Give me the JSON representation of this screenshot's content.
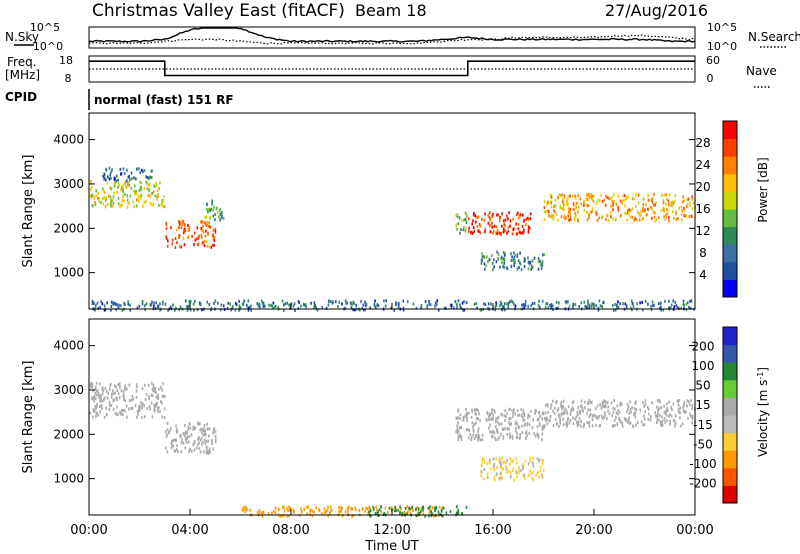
{
  "header": {
    "title": "Christmas Valley East (fitACF)",
    "beam": "Beam 18",
    "date": "27/Aug/2016"
  },
  "side_labels": {
    "nsky": "N.Sky",
    "freq": "Freq.",
    "freq_unit": "[MHz]",
    "cpid": "CPID",
    "nsearch": "N.Search",
    "nave": "Nave"
  },
  "cpid_text": "normal (fast) 151 RF",
  "colors": {
    "axis": "#000000",
    "power_scale": [
      "#0000ff",
      "#2050a0",
      "#3b6ea5",
      "#2e8b57",
      "#66bb44",
      "#c8d800",
      "#ffbf00",
      "#ff8000",
      "#ff4000",
      "#ff0000"
    ],
    "velocity_scale": [
      "#2222cc",
      "#3355aa",
      "#228833",
      "#66cc33",
      "#aaaaaa",
      "#bbbbbb",
      "#ffcc33",
      "#ff9900",
      "#ff5500",
      "#dd0000"
    ]
  },
  "chart_data": [
    {
      "type": "line",
      "panel": "noise",
      "left_ticks": [
        "10^5",
        "10^0"
      ],
      "right_ticks": [
        "10^5",
        "10^0"
      ],
      "series": [
        {
          "name": "N.Sky",
          "values": [
            0.3,
            0.3,
            0.3,
            0.4,
            0.9,
            1.1,
            1.0,
            0.5,
            0.3,
            0.3,
            0.3,
            0.3,
            0.3,
            0.3,
            0.4,
            0.5,
            0.4,
            0.4,
            0.4,
            0.4,
            0.4,
            0.4,
            0.4,
            0.3,
            0.3
          ]
        },
        {
          "name": "N.Search",
          "values": [
            0.2,
            0.2,
            0.2,
            0.3,
            0.4,
            0.4,
            0.3,
            0.2,
            0.2,
            0.2,
            0.2,
            0.2,
            0.2,
            0.2,
            0.3,
            0.4,
            0.4,
            0.5,
            0.5,
            0.5,
            0.5,
            0.6,
            0.6,
            0.5,
            0.4
          ]
        }
      ]
    },
    {
      "type": "line",
      "panel": "frequency",
      "left_ticks": [
        "18",
        "8"
      ],
      "right_ticks": [
        "60",
        "0"
      ],
      "series": [
        {
          "name": "Freq.",
          "x": [
            0,
            3.0,
            3.0,
            15.0,
            15.0,
            24
          ],
          "values": [
            16,
            16,
            10.5,
            10.5,
            16,
            16
          ]
        },
        {
          "name": "Nave",
          "x": [
            0,
            24
          ],
          "values": [
            30,
            30
          ]
        }
      ]
    },
    {
      "type": "heatmap",
      "panel": "power",
      "ylabel": "Slant Range [km]",
      "colorbar_label": "Power [dB]",
      "colorbar_ticks": [
        "4",
        "8",
        "12",
        "16",
        "20",
        "24",
        "28"
      ],
      "y_ticks": [
        "1000",
        "2000",
        "3000",
        "4000"
      ],
      "ylim": [
        180,
        4600
      ],
      "xlim": [
        0,
        24
      ],
      "x_ticks": [
        "00:00",
        "04:00",
        "08:00",
        "12:00",
        "16:00",
        "20:00",
        "00:00"
      ],
      "regions": [
        {
          "x": [
            0,
            3.0
          ],
          "y": [
            2500,
            3100
          ],
          "value": 18
        },
        {
          "x": [
            0.5,
            2.5
          ],
          "y": [
            3100,
            3400
          ],
          "value": 8
        },
        {
          "x": [
            3.0,
            5.0
          ],
          "y": [
            1600,
            2200
          ],
          "value": 26
        },
        {
          "x": [
            4.5,
            5.3
          ],
          "y": [
            2200,
            2700
          ],
          "value": 14
        },
        {
          "x": [
            14.5,
            15.0
          ],
          "y": [
            1900,
            2400
          ],
          "value": 14
        },
        {
          "x": [
            15.0,
            17.5
          ],
          "y": [
            1900,
            2400
          ],
          "value": 28
        },
        {
          "x": [
            15.5,
            18.0
          ],
          "y": [
            1100,
            1500
          ],
          "value": 10
        },
        {
          "x": [
            18.0,
            24.0
          ],
          "y": [
            2200,
            2800
          ],
          "value": 22
        },
        {
          "x": [
            0,
            24
          ],
          "y": [
            180,
            400
          ],
          "value": 8
        }
      ]
    },
    {
      "type": "heatmap",
      "panel": "velocity",
      "ylabel": "Slant Range [km]",
      "xlabel": "Time UT",
      "colorbar_label": "Velocity [m s^-1]",
      "colorbar_ticks": [
        "200",
        "100",
        "50",
        "15",
        "-15",
        "-50",
        "-100",
        "-200"
      ],
      "y_ticks": [
        "1000",
        "2000",
        "3000",
        "4000"
      ],
      "ylim": [
        180,
        4600
      ],
      "xlim": [
        0,
        24
      ],
      "x_ticks": [
        "00:00",
        "04:00",
        "08:00",
        "12:00",
        "16:00",
        "20:00",
        "00:00"
      ],
      "regions": [
        {
          "x": [
            0,
            3.0
          ],
          "y": [
            2400,
            3200
          ],
          "value": 0
        },
        {
          "x": [
            3.0,
            5.0
          ],
          "y": [
            1600,
            2300
          ],
          "value": 0
        },
        {
          "x": [
            14.5,
            18.0
          ],
          "y": [
            1900,
            2600
          ],
          "value": 0
        },
        {
          "x": [
            18.0,
            24.0
          ],
          "y": [
            2200,
            2800
          ],
          "value": 0
        },
        {
          "x": [
            15.5,
            18.0
          ],
          "y": [
            1000,
            1500
          ],
          "value": -20
        },
        {
          "x": [
            6.0,
            14.0
          ],
          "y": [
            180,
            400
          ],
          "value": -60
        },
        {
          "x": [
            11.0,
            15.0
          ],
          "y": [
            180,
            400
          ],
          "value": 40
        }
      ]
    }
  ]
}
